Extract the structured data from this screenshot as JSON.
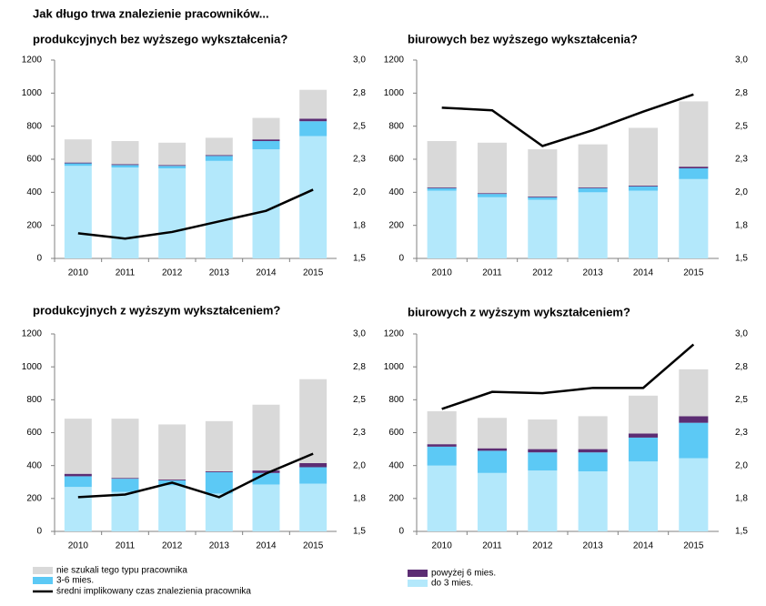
{
  "title": "Jak długo trwa znalezienie pracowników...",
  "chart_data": [
    {
      "type": "bar",
      "stacked": true,
      "title": "produkcyjnych bez wyższego wykształcenia?",
      "categories": [
        "2010",
        "2011",
        "2012",
        "2013",
        "2014",
        "2015"
      ],
      "ylim": [
        0,
        1200
      ],
      "yticks": [
        0,
        200,
        400,
        600,
        800,
        1000,
        1200
      ],
      "y2lim": [
        1.5,
        3.0
      ],
      "y2ticks": [
        {
          "value": 1.5,
          "label": "1,5"
        },
        {
          "value": 1.75,
          "label": "1,8"
        },
        {
          "value": 2.0,
          "label": "2,0"
        },
        {
          "value": 2.25,
          "label": "2,3"
        },
        {
          "value": 2.5,
          "label": "2,5"
        },
        {
          "value": 2.75,
          "label": "2,8"
        },
        {
          "value": 3.0,
          "label": "3,0"
        }
      ],
      "series": [
        {
          "name": "do 3 mies.",
          "color": "#b3e8fb",
          "values": [
            560,
            550,
            545,
            590,
            660,
            740
          ]
        },
        {
          "name": "3-6 mies.",
          "color": "#5cc9f5",
          "values": [
            15,
            15,
            15,
            30,
            50,
            90
          ]
        },
        {
          "name": "powyżej 6 mies.",
          "color": "#5c2d73",
          "values": [
            5,
            5,
            5,
            5,
            10,
            15
          ]
        },
        {
          "name": "nie szukali tego typu pracownika",
          "color": "#d9d9d9",
          "values": [
            140,
            140,
            135,
            105,
            130,
            175
          ]
        },
        {
          "name": "średni implikowany czas znalezienia pracownika",
          "type": "line",
          "axis": "y2",
          "color": "#000000",
          "values": [
            1.69,
            1.65,
            1.7,
            1.78,
            1.86,
            2.02
          ]
        }
      ]
    },
    {
      "type": "bar",
      "stacked": true,
      "title": "biurowych bez wyższego wykształcenia?",
      "categories": [
        "2010",
        "2011",
        "2012",
        "2013",
        "2014",
        "2015"
      ],
      "ylim": [
        0,
        1200
      ],
      "yticks": [
        0,
        200,
        400,
        600,
        800,
        1000,
        1200
      ],
      "y2lim": [
        1.5,
        3.0
      ],
      "y2ticks": [
        {
          "value": 1.5,
          "label": "1,5"
        },
        {
          "value": 1.75,
          "label": "1,8"
        },
        {
          "value": 2.0,
          "label": "2,0"
        },
        {
          "value": 2.25,
          "label": "2,3"
        },
        {
          "value": 2.5,
          "label": "2,5"
        },
        {
          "value": 2.75,
          "label": "2,8"
        },
        {
          "value": 3.0,
          "label": "3,0"
        }
      ],
      "series": [
        {
          "name": "do 3 mies.",
          "color": "#b3e8fb",
          "values": [
            410,
            370,
            355,
            400,
            410,
            480
          ]
        },
        {
          "name": "3-6 mies.",
          "color": "#5cc9f5",
          "values": [
            15,
            20,
            15,
            25,
            25,
            65
          ]
        },
        {
          "name": "powyżej 6 mies.",
          "color": "#5c2d73",
          "values": [
            5,
            5,
            5,
            5,
            5,
            10
          ]
        },
        {
          "name": "nie szukali tego typu pracownika",
          "color": "#d9d9d9",
          "values": [
            280,
            305,
            285,
            260,
            350,
            395
          ]
        },
        {
          "name": "średni implikowany czas znalezienia pracownika",
          "type": "line",
          "axis": "y2",
          "color": "#000000",
          "values": [
            2.64,
            2.62,
            2.35,
            2.47,
            2.61,
            2.74
          ]
        }
      ]
    },
    {
      "type": "bar",
      "stacked": true,
      "title": "produkcyjnych z wyższym wykształceniem?",
      "categories": [
        "2010",
        "2011",
        "2012",
        "2013",
        "2014",
        "2015"
      ],
      "ylim": [
        0,
        1200
      ],
      "yticks": [
        0,
        200,
        400,
        600,
        800,
        1000,
        1200
      ],
      "y2lim": [
        1.5,
        3.0
      ],
      "y2ticks": [
        {
          "value": 1.5,
          "label": "1,5"
        },
        {
          "value": 1.75,
          "label": "1,8"
        },
        {
          "value": 2.0,
          "label": "2,0"
        },
        {
          "value": 2.25,
          "label": "2,3"
        },
        {
          "value": 2.5,
          "label": "2,5"
        },
        {
          "value": 2.75,
          "label": "2,8"
        },
        {
          "value": 3.0,
          "label": "3,0"
        }
      ],
      "series": [
        {
          "name": "do 3 mies.",
          "color": "#b3e8fb",
          "values": [
            270,
            240,
            280,
            230,
            285,
            290
          ]
        },
        {
          "name": "3-6 mies.",
          "color": "#5cc9f5",
          "values": [
            65,
            80,
            30,
            130,
            70,
            100
          ]
        },
        {
          "name": "powyżej 6 mies.",
          "color": "#5c2d73",
          "values": [
            15,
            5,
            5,
            5,
            15,
            25
          ]
        },
        {
          "name": "nie szukali tego typu pracownika",
          "color": "#d9d9d9",
          "values": [
            335,
            360,
            335,
            305,
            400,
            510
          ]
        },
        {
          "name": "średni implikowany czas znalezienia pracownika",
          "type": "line",
          "axis": "y2",
          "color": "#000000",
          "values": [
            1.76,
            1.78,
            1.87,
            1.76,
            1.94,
            2.09
          ]
        }
      ]
    },
    {
      "type": "bar",
      "stacked": true,
      "title": "biurowych z wyższym wykształceniem?",
      "categories": [
        "2010",
        "2011",
        "2012",
        "2013",
        "2014",
        "2015"
      ],
      "ylim": [
        0,
        1200
      ],
      "yticks": [
        0,
        200,
        400,
        600,
        800,
        1000,
        1200
      ],
      "y2lim": [
        1.5,
        3.0
      ],
      "y2ticks": [
        {
          "value": 1.5,
          "label": "1,5"
        },
        {
          "value": 1.75,
          "label": "1,8"
        },
        {
          "value": 2.0,
          "label": "2,0"
        },
        {
          "value": 2.25,
          "label": "2,3"
        },
        {
          "value": 2.5,
          "label": "2,5"
        },
        {
          "value": 2.75,
          "label": "2,8"
        },
        {
          "value": 3.0,
          "label": "3,0"
        }
      ],
      "series": [
        {
          "name": "do 3 mies.",
          "color": "#b3e8fb",
          "values": [
            400,
            355,
            370,
            365,
            425,
            445
          ]
        },
        {
          "name": "3-6 mies.",
          "color": "#5cc9f5",
          "values": [
            115,
            135,
            110,
            115,
            145,
            215
          ]
        },
        {
          "name": "powyżej 6 mies.",
          "color": "#5c2d73",
          "values": [
            15,
            15,
            20,
            20,
            25,
            40
          ]
        },
        {
          "name": "nie szukali tego typu pracownika",
          "color": "#d9d9d9",
          "values": [
            200,
            185,
            180,
            200,
            230,
            285
          ]
        },
        {
          "name": "średni implikowany czas znalezienia pracownika",
          "type": "line",
          "axis": "y2",
          "color": "#000000",
          "values": [
            2.43,
            2.56,
            2.55,
            2.59,
            2.59,
            2.92
          ]
        }
      ]
    }
  ]
}
